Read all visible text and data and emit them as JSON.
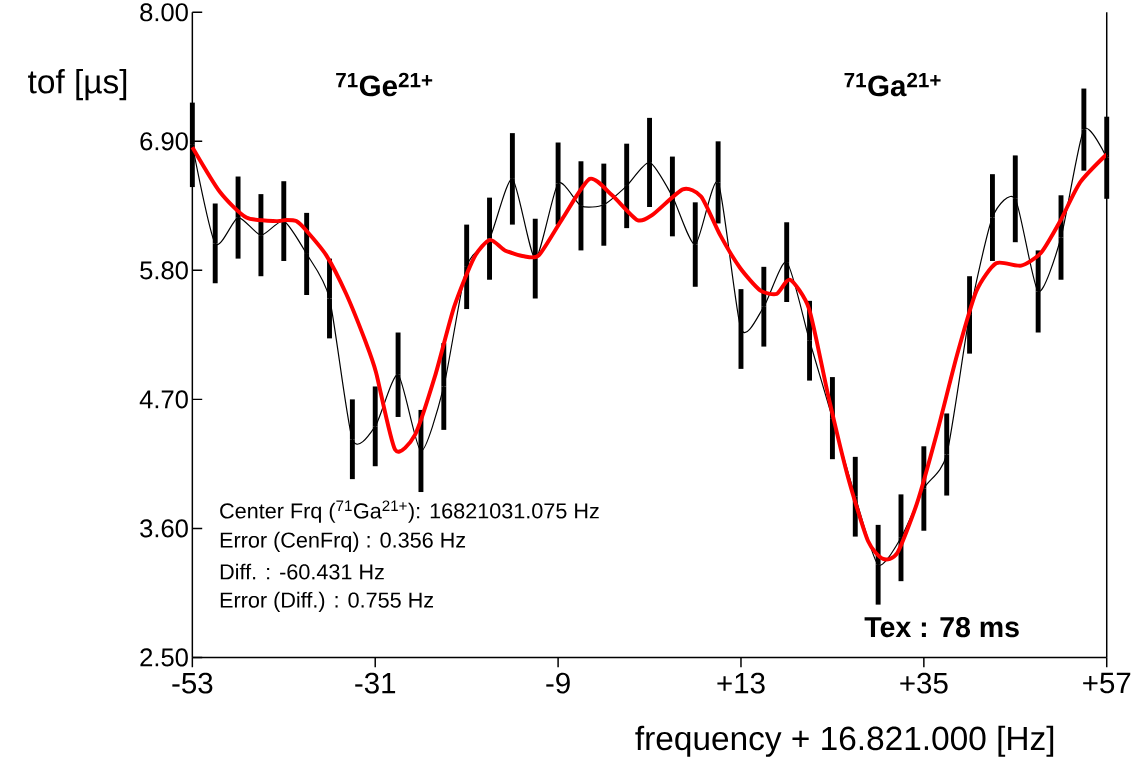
{
  "chart_data": {
    "type": "line",
    "xlabel": "frequency + 16.821.000 [Hz]",
    "ylabel": "tof [µs]",
    "xlim": [
      -53,
      57
    ],
    "ylim": [
      2.5,
      8.0
    ],
    "xticks": [
      -53,
      -31,
      -9,
      {
        "value": 13,
        "label": "+13"
      },
      {
        "value": 35,
        "label": "+35"
      },
      {
        "value": 57,
        "label": "+57"
      }
    ],
    "yticks": [
      {
        "value": 2.5,
        "label": "2.50"
      },
      {
        "value": 3.6,
        "label": "3.60"
      },
      {
        "value": 4.7,
        "label": "4.70"
      },
      {
        "value": 5.8,
        "label": "5.80"
      },
      {
        "value": 6.9,
        "label": "6.90"
      },
      {
        "value": 8.0,
        "label": "8.00"
      }
    ],
    "series": [
      {
        "color": "#000000",
        "x": [
          -53,
          -50.25,
          -47.5,
          -44.75,
          -42,
          -39.25,
          -36.5,
          -33.75,
          -31,
          -28.25,
          -25.5,
          -22.75,
          -20,
          -17.25,
          -14.5,
          -11.75,
          -9,
          -6.25,
          -3.5,
          -0.75,
          2,
          4.75,
          7.5,
          10.25,
          13,
          15.75,
          18.5,
          21.25,
          24,
          26.75,
          29.5,
          32.25,
          35,
          37.75,
          40.5,
          43.25,
          46,
          48.75,
          51.5,
          54.25,
          57
        ],
        "values": [
          6.87,
          6.03,
          6.25,
          6.1,
          6.22,
          5.94,
          5.56,
          4.36,
          4.47,
          4.91,
          4.26,
          4.81,
          5.83,
          6.07,
          6.58,
          5.9,
          6.54,
          6.35,
          6.36,
          6.52,
          6.72,
          6.43,
          6.02,
          6.55,
          5.3,
          5.49,
          5.87,
          5.2,
          4.54,
          3.87,
          3.29,
          3.52,
          3.94,
          4.23,
          5.42,
          6.25,
          6.41,
          5.62,
          6.08,
          7.0,
          6.76
        ],
        "errors": [
          0.36,
          0.34,
          0.35,
          0.35,
          0.34,
          0.35,
          0.34,
          0.34,
          0.34,
          0.36,
          0.35,
          0.37,
          0.36,
          0.35,
          0.39,
          0.34,
          0.35,
          0.38,
          0.35,
          0.36,
          0.38,
          0.34,
          0.36,
          0.35,
          0.34,
          0.34,
          0.34,
          0.34,
          0.35,
          0.34,
          0.34,
          0.37,
          0.36,
          0.35,
          0.33,
          0.37,
          0.37,
          0.35,
          0.36,
          0.35,
          0.35
        ]
      },
      {
        "color": "#ff0000",
        "type": "line",
        "x": [
          -53,
          -49.7,
          -46.5,
          -42.9,
          -41.7,
          -40.5,
          -39.3,
          -36.9,
          -34.5,
          -32.1,
          -30.9,
          -28.6,
          -26.2,
          -23.8,
          -21.5,
          -19.1,
          -17.2,
          -15.4,
          -13.1,
          -11.3,
          -8.4,
          -5.2,
          -2.5,
          0.5,
          2.3,
          6.0,
          8.2,
          10.5,
          12.9,
          15.3,
          17.3,
          18.9,
          21.2,
          23.5,
          25.9,
          28.3,
          30.1,
          31.8,
          34.2,
          36.6,
          39.0,
          41.3,
          43.7,
          46.7,
          49.1,
          51.4,
          53.8,
          57
        ],
        "values": [
          6.85,
          6.47,
          6.25,
          6.22,
          6.23,
          6.22,
          6.14,
          5.93,
          5.6,
          5.18,
          4.93,
          4.27,
          4.4,
          4.9,
          5.49,
          5.91,
          6.06,
          5.97,
          5.92,
          5.93,
          6.25,
          6.58,
          6.44,
          6.23,
          6.27,
          6.49,
          6.43,
          6.1,
          5.82,
          5.63,
          5.6,
          5.72,
          5.47,
          4.73,
          4.03,
          3.49,
          3.34,
          3.39,
          3.82,
          4.42,
          5.08,
          5.62,
          5.86,
          5.84,
          5.95,
          6.22,
          6.55,
          6.79
        ]
      }
    ],
    "annotations": [
      "$^{71}$Ge$^{21+}$",
      "$^{71}$Ga$^{21+}$",
      "Center Frq ($^{71}$Ga$^{21+}$): 16821031.075 Hz",
      "Error (CenFrq) : 0.356 Hz",
      "Diff. : -60.431 Hz",
      "Error (Diff.) : 0.755 Hz",
      "Tex : 78 ms"
    ]
  }
}
